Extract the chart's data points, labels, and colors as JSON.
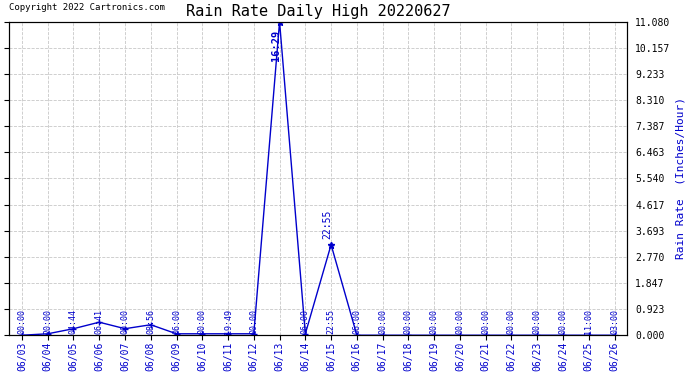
{
  "title": "Rain Rate Daily High 20220627",
  "copyright": "Copyright 2022 Cartronics.com",
  "ylabel_right": "Rain Rate  (Inches/Hour)",
  "background_color": "#ffffff",
  "plot_bg_color": "#ffffff",
  "grid_color": "#c8c8c8",
  "line_color": "#0000cc",
  "text_color": "#0000cc",
  "title_color": "#000000",
  "ytick_color": "#000000",
  "ylim": [
    0,
    11.08
  ],
  "yticks": [
    0.0,
    0.923,
    1.847,
    2.77,
    3.693,
    4.617,
    5.54,
    6.463,
    7.387,
    8.31,
    9.233,
    10.157,
    11.08
  ],
  "ytick_labels": [
    "0.000",
    "0.923",
    "1.847",
    "2.770",
    "3.693",
    "4.617",
    "5.540",
    "6.463",
    "7.387",
    "8.310",
    "9.233",
    "10.157",
    "11.080"
  ],
  "x_dates": [
    "06/03",
    "06/04",
    "06/05",
    "06/06",
    "06/07",
    "06/08",
    "06/09",
    "06/10",
    "06/11",
    "06/12",
    "06/13",
    "06/14",
    "06/15",
    "06/16",
    "06/17",
    "06/18",
    "06/19",
    "06/20",
    "06/21",
    "06/22",
    "06/23",
    "06/24",
    "06/25",
    "06/26"
  ],
  "x_numeric": [
    0,
    1,
    2,
    3,
    4,
    5,
    6,
    7,
    8,
    9,
    10,
    11,
    12,
    13,
    14,
    15,
    16,
    17,
    18,
    19,
    20,
    21,
    22,
    23
  ],
  "y_values": [
    0.0,
    0.05,
    0.23,
    0.46,
    0.23,
    0.37,
    0.05,
    0.05,
    0.05,
    0.05,
    11.08,
    0.05,
    3.2,
    0.0,
    0.0,
    0.0,
    0.0,
    0.0,
    0.0,
    0.0,
    0.0,
    0.0,
    0.0,
    0.0
  ],
  "time_labels": [
    "00:00",
    "20:00",
    "04:44",
    "06:41",
    "00:00",
    "08:56",
    "06:00",
    "00:00",
    "19:49",
    "00:00",
    null,
    "06:00",
    "22:55",
    "06:00",
    "00:00",
    "00:00",
    "00:00",
    "00:00",
    "00:00",
    "00:00",
    "00:00",
    "00:00",
    "11:00",
    "03:00"
  ],
  "peak_index": 10,
  "peak_time": "16:29",
  "peak_value": 11.08,
  "second_peak_index": 12,
  "second_peak_time": "22:55",
  "second_peak_value": 3.2
}
